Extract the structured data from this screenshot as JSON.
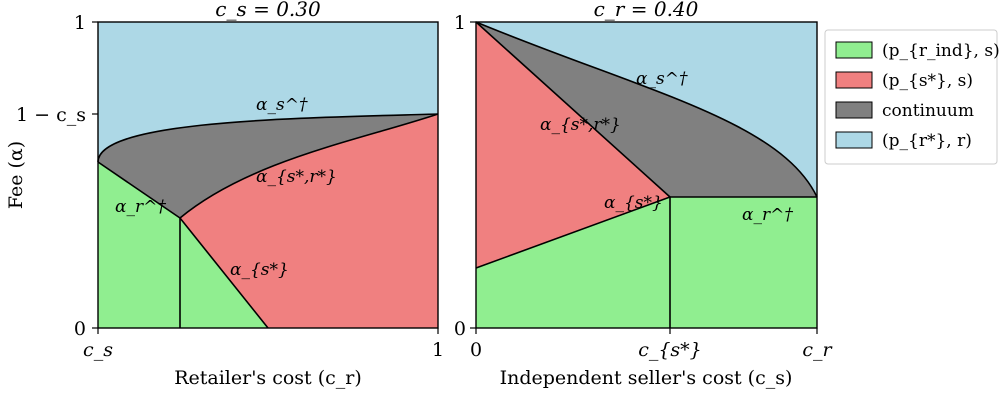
{
  "colors": {
    "green": "#90ee90",
    "red": "#f08080",
    "gray": "#808080",
    "blue": "#add8e6",
    "stroke": "#000000"
  },
  "left_panel": {
    "title": "c_s = 0.30",
    "y_axis_label": "Fee (α)",
    "x_axis_label": "Retailer's cost (c_r)",
    "x_ticks": [
      "c_s",
      "1"
    ],
    "y_ticks": [
      "0",
      "1 − c_s",
      "1"
    ],
    "annotations": {
      "alpha_s_dagger": "α_s^†",
      "alpha_sr": "α_{s*,r*}",
      "alpha_r_dagger": "α_r^†",
      "alpha_s_star": "α_{s*}"
    }
  },
  "right_panel": {
    "title": "c_r = 0.40",
    "x_axis_label": "Independent seller's cost (c_s)",
    "x_ticks": [
      "0",
      "c_{s*}",
      "c_r"
    ],
    "y_ticks": [
      "0",
      "1"
    ],
    "annotations": {
      "alpha_s_dagger": "α_s^†",
      "alpha_sr": "α_{s*,r*}",
      "alpha_s_star": "α_{s*}",
      "alpha_r_dagger": "α_r^†"
    }
  },
  "legend": [
    {
      "label": "(p_{r_ind}, s)",
      "color": "#90ee90"
    },
    {
      "label": "(p_{s*}, s)",
      "color": "#f08080"
    },
    {
      "label": "continuum",
      "color": "#808080"
    },
    {
      "label": "(p_{r*}, r)",
      "color": "#add8e6"
    }
  ]
}
